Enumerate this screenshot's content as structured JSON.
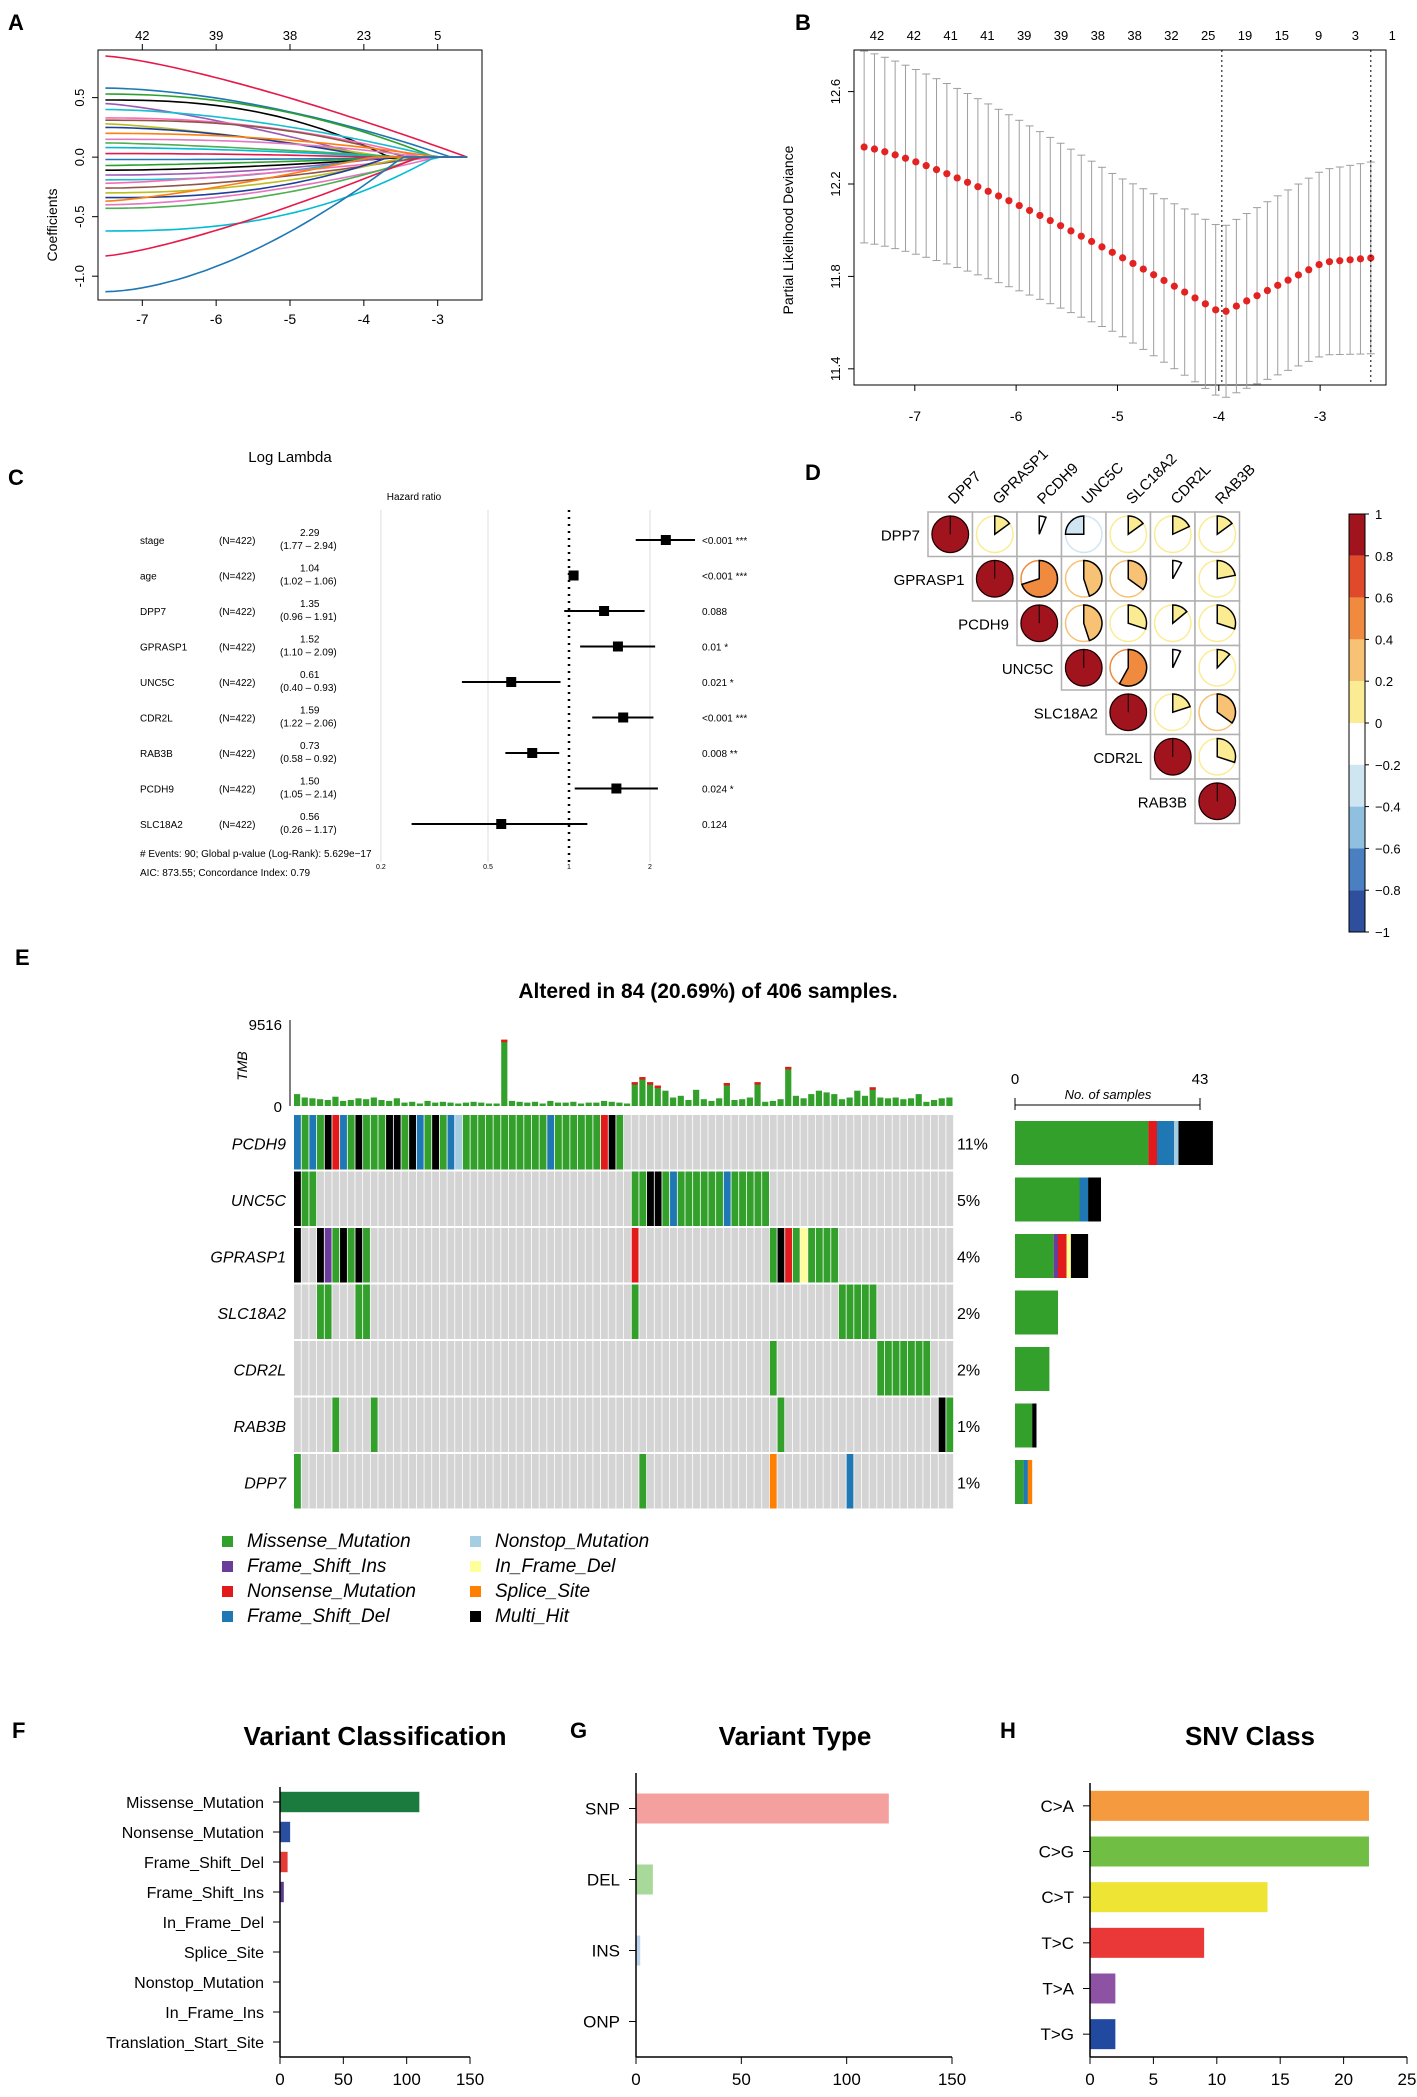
{
  "panel_labels": {
    "a": "A",
    "b": "B",
    "c": "C",
    "d": "D",
    "e": "E",
    "f": "F",
    "g": "G",
    "h": "H"
  },
  "colors": {
    "missense": "#33a02c",
    "frame_shift_ins": "#6a3d9a",
    "nonsense": "#e31a1c",
    "frame_shift_del": "#1f78b4",
    "nonstop": "#a6cee3",
    "in_frame_del": "#ffff99",
    "splice_site": "#ff7f00",
    "multi_hit": "#000000",
    "cv_red": "#e32222",
    "grey_cell": "#d4d4d4"
  },
  "chart_data": [
    {
      "panel": "A",
      "type": "line",
      "title": "",
      "xlabel": "Log Lambda",
      "ylabel": "Coefficients",
      "xlim": [
        -7.6,
        -2.4
      ],
      "ylim": [
        -1.2,
        0.9
      ],
      "x_ticks": [
        "-7",
        "-6",
        "-5",
        "-4",
        "-3"
      ],
      "y_ticks": [
        "0.5",
        "0.0",
        "-0.5",
        "-1.0"
      ],
      "top_ticks": [
        "42",
        "39",
        "38",
        "23",
        "5"
      ],
      "start_coefficients": [
        0.85,
        0.58,
        0.53,
        0.48,
        0.45,
        0.4,
        0.33,
        0.31,
        0.28,
        0.25,
        0.2,
        0.15,
        0.12,
        0.08,
        0.03,
        -0.02,
        -0.07,
        -0.11,
        -0.15,
        -0.19,
        -0.22,
        -0.26,
        -0.3,
        -0.34,
        -0.37,
        -0.4,
        -0.43,
        -0.62,
        -0.83,
        -1.13
      ]
    },
    {
      "panel": "B",
      "type": "line",
      "title": "",
      "xlabel": "",
      "ylabel": "Partial Likelihood Deviance",
      "xlim": [
        -7.6,
        -2.35
      ],
      "ylim": [
        11.33,
        12.78
      ],
      "x_ticks": [
        "-7",
        "-6",
        "-5",
        "-4",
        "-3"
      ],
      "y_ticks": [
        "12.6",
        "12.2",
        "11.8",
        "11.4"
      ],
      "top_ticks": [
        "42",
        "42",
        "41",
        "41",
        "39",
        "39",
        "38",
        "38",
        "32",
        "25",
        "19",
        "15",
        "9",
        "3",
        "1"
      ],
      "lambda_min": -3.97,
      "lambda_1se": -2.5,
      "series": [
        {
          "name": "mean deviance",
          "x_start": -7.5,
          "x_end": -2.5,
          "n": 50
        }
      ]
    },
    {
      "panel": "C",
      "type": "forest",
      "header": "Hazard ratio",
      "rows": [
        {
          "label": "stage",
          "n": "(N=422)",
          "hr": 2.29,
          "hr_text": "2.29",
          "ci_text": "(1.77 – 2.94)",
          "lo": 1.77,
          "hi": 2.94,
          "p": "<0.001 ***"
        },
        {
          "label": "age",
          "n": "(N=422)",
          "hr": 1.04,
          "hr_text": "1.04",
          "ci_text": "(1.02 – 1.06)",
          "lo": 1.02,
          "hi": 1.06,
          "p": "<0.001 ***"
        },
        {
          "label": "DPP7",
          "n": "(N=422)",
          "hr": 1.35,
          "hr_text": "1.35",
          "ci_text": "(0.96 – 1.91)",
          "lo": 0.96,
          "hi": 1.91,
          "p": "0.088"
        },
        {
          "label": "GPRASP1",
          "n": "(N=422)",
          "hr": 1.52,
          "hr_text": "1.52",
          "ci_text": "(1.10 – 2.09)",
          "lo": 1.1,
          "hi": 2.09,
          "p": "0.01 *"
        },
        {
          "label": "UNC5C",
          "n": "(N=422)",
          "hr": 0.61,
          "hr_text": "0.61",
          "ci_text": "(0.40 – 0.93)",
          "lo": 0.4,
          "hi": 0.93,
          "p": "0.021 *"
        },
        {
          "label": "CDR2L",
          "n": "(N=422)",
          "hr": 1.59,
          "hr_text": "1.59",
          "ci_text": "(1.22 – 2.06)",
          "lo": 1.22,
          "hi": 2.06,
          "p": "<0.001 ***"
        },
        {
          "label": "RAB3B",
          "n": "(N=422)",
          "hr": 0.73,
          "hr_text": "0.73",
          "ci_text": "(0.58 – 0.92)",
          "lo": 0.58,
          "hi": 0.92,
          "p": "0.008 **"
        },
        {
          "label": "PCDH9",
          "n": "(N=422)",
          "hr": 1.5,
          "hr_text": "1.50",
          "ci_text": "(1.05 – 2.14)",
          "lo": 1.05,
          "hi": 2.14,
          "p": "0.024 *"
        },
        {
          "label": "SLC18A2",
          "n": "(N=422)",
          "hr": 0.56,
          "hr_text": "0.56",
          "ci_text": "(0.26 – 1.17)",
          "lo": 0.26,
          "hi": 1.17,
          "p": "0.124"
        }
      ],
      "x_ticks": [
        "0.2",
        "0.5",
        "1",
        "2"
      ],
      "footer1": "# Events: 90; Global p-value (Log-Rank): 5.629e−17",
      "footer2": "AIC: 873.55; Concordance Index: 0.79"
    },
    {
      "panel": "D",
      "type": "heatmap",
      "genes": [
        "DPP7",
        "GPRASP1",
        "PCDH9",
        "UNC5C",
        "SLC18A2",
        "CDR2L",
        "RAB3B"
      ],
      "matrix": [
        [
          1,
          0.15,
          0.06,
          -0.25,
          0.15,
          0.18,
          0.15
        ],
        [
          0.15,
          1,
          0.7,
          0.45,
          0.35,
          0.08,
          0.22
        ],
        [
          0.06,
          0.7,
          1,
          0.45,
          0.3,
          0.14,
          0.3
        ],
        [
          -0.25,
          0.45,
          0.45,
          1,
          0.58,
          0.07,
          0.12
        ],
        [
          0.15,
          0.35,
          0.3,
          0.58,
          1,
          0.2,
          0.35
        ],
        [
          0.18,
          0.08,
          0.14,
          0.07,
          0.2,
          1,
          0.3
        ],
        [
          0.15,
          0.22,
          0.3,
          0.12,
          0.35,
          0.3,
          1
        ]
      ],
      "legend_ticks": [
        "1",
        "0.8",
        "0.6",
        "0.4",
        "0.2",
        "0",
        "−0.2",
        "−0.4",
        "−0.6",
        "−0.8",
        "−1"
      ]
    },
    {
      "panel": "E",
      "type": "oncoplot",
      "title": "Altered in 84 (20.69%) of 406 samples.",
      "tmb_label": "TMB",
      "tmb_max": "9516",
      "tmb_min": "0",
      "no_samples_label": "No. of samples",
      "no_samples_min": "0",
      "no_samples_max": "43",
      "xmax": 43,
      "genes": [
        {
          "name": "PCDH9",
          "pct": "11%",
          "total": 43,
          "counts": {
            "missense": 31,
            "nonsense": 2,
            "frame_shift_del": 4,
            "nonstop": 1,
            "multi_hit": 8
          }
        },
        {
          "name": "UNC5C",
          "pct": "5%",
          "total": 20,
          "counts": {
            "missense": 15,
            "frame_shift_del": 2,
            "multi_hit": 3
          }
        },
        {
          "name": "GPRASP1",
          "pct": "4%",
          "total": 17,
          "counts": {
            "missense": 9,
            "frame_shift_ins": 1,
            "nonsense": 2,
            "in_frame_del": 1,
            "multi_hit": 4
          }
        },
        {
          "name": "SLC18A2",
          "pct": "2%",
          "total": 10,
          "counts": {
            "missense": 10
          }
        },
        {
          "name": "CDR2L",
          "pct": "2%",
          "total": 8,
          "counts": {
            "missense": 8
          }
        },
        {
          "name": "RAB3B",
          "pct": "1%",
          "total": 5,
          "counts": {
            "missense": 4,
            "multi_hit": 1
          }
        },
        {
          "name": "DPP7",
          "pct": "1%",
          "total": 4,
          "counts": {
            "missense": 2,
            "frame_shift_del": 1,
            "splice_site": 1
          }
        }
      ],
      "legend": [
        {
          "key": "missense",
          "label": "Missense_Mutation"
        },
        {
          "key": "frame_shift_ins",
          "label": "Frame_Shift_Ins"
        },
        {
          "key": "nonsense",
          "label": "Nonsense_Mutation"
        },
        {
          "key": "frame_shift_del",
          "label": "Frame_Shift_Del"
        },
        {
          "key": "nonstop",
          "label": "Nonstop_Mutation"
        },
        {
          "key": "in_frame_del",
          "label": "In_Frame_Del"
        },
        {
          "key": "splice_site",
          "label": "Splice_Site"
        },
        {
          "key": "multi_hit",
          "label": "Multi_Hit"
        }
      ]
    },
    {
      "panel": "F",
      "type": "bar",
      "orientation": "horizontal",
      "title": "Variant Classification",
      "categories": [
        "Missense_Mutation",
        "Nonsense_Mutation",
        "Frame_Shift_Del",
        "Frame_Shift_Ins",
        "In_Frame_Del",
        "Splice_Site",
        "Nonstop_Mutation",
        "In_Frame_Ins",
        "Translation_Start_Site"
      ],
      "values": [
        110,
        8,
        6,
        3,
        0,
        0,
        0,
        0,
        0
      ],
      "bar_colors": [
        "#1b7a3e",
        "#2b4fa0",
        "#e33b36",
        "#5a3a8a",
        "#000000",
        "#000000",
        "#000000",
        "#000000",
        "#000000"
      ],
      "xlim": [
        0,
        150
      ],
      "x_ticks": [
        "0",
        "50",
        "100",
        "150"
      ]
    },
    {
      "panel": "G",
      "type": "bar",
      "orientation": "horizontal",
      "title": "Variant Type",
      "categories": [
        "SNP",
        "DEL",
        "INS",
        "ONP"
      ],
      "values": [
        120,
        8,
        2,
        0
      ],
      "bar_colors": [
        "#f4a09e",
        "#a8d89a",
        "#bcd4ec",
        "#000000"
      ],
      "xlim": [
        0,
        150
      ],
      "x_ticks": [
        "0",
        "50",
        "100",
        "150"
      ]
    },
    {
      "panel": "H",
      "type": "bar",
      "orientation": "horizontal",
      "title": "SNV Class",
      "categories": [
        "C>A",
        "C>G",
        "C>T",
        "T>C",
        "T>A",
        "T>G"
      ],
      "values": [
        22,
        22,
        14,
        9,
        2,
        2
      ],
      "bar_colors": [
        "#f59a3e",
        "#70be44",
        "#eee434",
        "#ea3838",
        "#8e52a5",
        "#2149a0"
      ],
      "xlim": [
        0,
        25
      ],
      "x_ticks": [
        "0",
        "5",
        "10",
        "15",
        "20",
        "25"
      ]
    }
  ]
}
